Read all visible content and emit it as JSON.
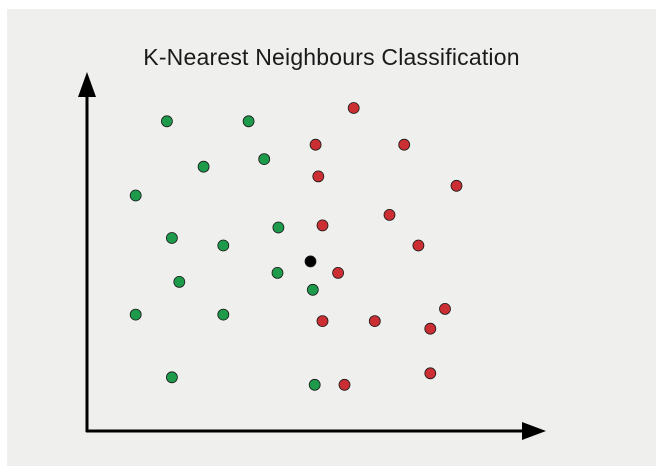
{
  "chart_data": {
    "type": "scatter",
    "title": "K-Nearest Neighbours Classification",
    "xlabel": "",
    "ylabel": "",
    "axes": {
      "x_ticks": false,
      "y_ticks": false,
      "grid": false,
      "arrow_heads": true
    },
    "xlim": [
      0,
      100
    ],
    "ylim": [
      0,
      100
    ],
    "colors": {
      "green_class": "#1e9a4b",
      "red_class": "#cc2f33",
      "query": "#000000",
      "axis": "#000000",
      "background": "#eff0ee"
    },
    "series": [
      {
        "color_key": "green_class",
        "points": [
          {
            "x": 17.4,
            "y": 86.3
          },
          {
            "x": 35.2,
            "y": 86.3
          },
          {
            "x": 25.4,
            "y": 73.7
          },
          {
            "x": 38.6,
            "y": 75.8
          },
          {
            "x": 10.6,
            "y": 65.7
          },
          {
            "x": 18.5,
            "y": 53.9
          },
          {
            "x": 29.7,
            "y": 51.8
          },
          {
            "x": 41.7,
            "y": 56.8
          },
          {
            "x": 20.1,
            "y": 41.7
          },
          {
            "x": 41.5,
            "y": 44.2
          },
          {
            "x": 49.2,
            "y": 39.5
          },
          {
            "x": 10.6,
            "y": 32.6
          },
          {
            "x": 29.7,
            "y": 32.6
          },
          {
            "x": 18.5,
            "y": 15.2
          },
          {
            "x": 49.6,
            "y": 13.1
          }
        ]
      },
      {
        "color_key": "red_class",
        "points": [
          {
            "x": 58.1,
            "y": 90.0
          },
          {
            "x": 49.8,
            "y": 79.8
          },
          {
            "x": 69.1,
            "y": 79.8
          },
          {
            "x": 50.4,
            "y": 71.0
          },
          {
            "x": 80.5,
            "y": 68.4
          },
          {
            "x": 65.9,
            "y": 60.3
          },
          {
            "x": 51.3,
            "y": 57.4
          },
          {
            "x": 72.2,
            "y": 51.8
          },
          {
            "x": 54.7,
            "y": 44.2
          },
          {
            "x": 78.0,
            "y": 34.2
          },
          {
            "x": 51.3,
            "y": 30.8
          },
          {
            "x": 62.7,
            "y": 30.8
          },
          {
            "x": 74.8,
            "y": 28.7
          },
          {
            "x": 74.8,
            "y": 16.3
          },
          {
            "x": 56.1,
            "y": 13.1
          }
        ]
      },
      {
        "color_key": "query",
        "points": [
          {
            "x": 48.7,
            "y": 47.4
          }
        ]
      }
    ]
  }
}
